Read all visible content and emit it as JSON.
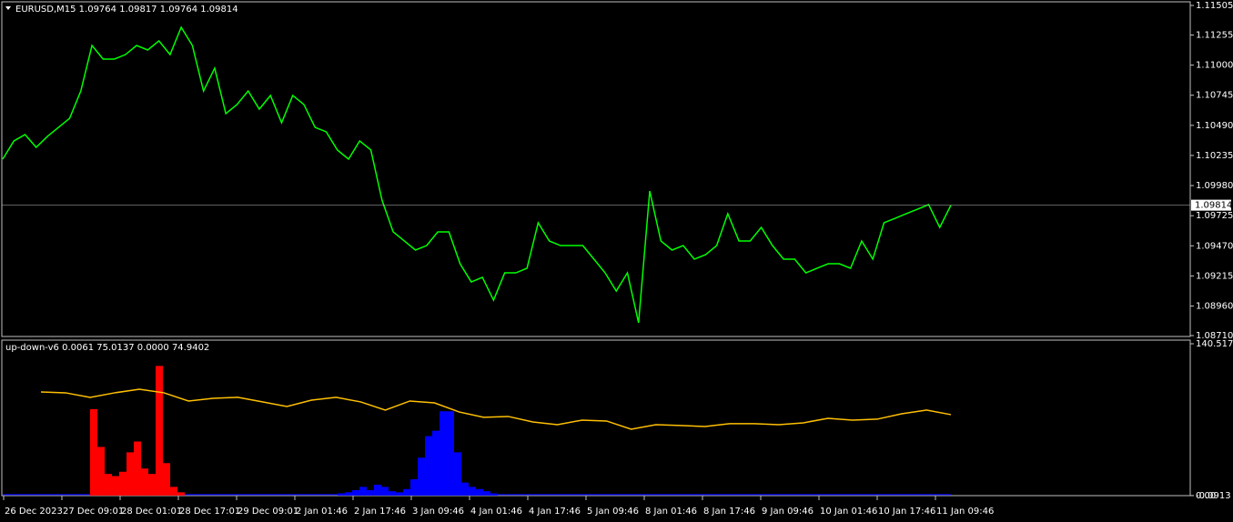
{
  "chart_data": [
    {
      "type": "line",
      "title": "EURUSD,M15  1.09764 1.09817 1.09764 1.09814",
      "color": "#00ff00",
      "values": [
        1.10204,
        1.10358,
        1.10412,
        1.10304,
        1.10396,
        1.10473,
        1.1055,
        1.10781,
        1.11166,
        1.11051,
        1.11051,
        1.11089,
        1.11166,
        1.11128,
        1.11205,
        1.11089,
        1.1132,
        1.11166,
        1.10781,
        1.10974,
        1.10589,
        1.10666,
        1.10781,
        1.10627,
        1.10743,
        1.10512,
        1.10743,
        1.10666,
        1.10473,
        1.10435,
        1.10281,
        1.10204,
        1.10358,
        1.10281,
        1.09857,
        1.09588,
        1.09511,
        1.09434,
        1.09472,
        1.09588,
        1.09588,
        1.09318,
        1.09164,
        1.09203,
        1.0901,
        1.09241,
        1.09241,
        1.0928,
        1.09665,
        1.09511,
        1.09472,
        1.09472,
        1.09472,
        1.09357,
        1.09241,
        1.09087,
        1.09241,
        1.08818,
        1.09934,
        1.09511,
        1.09434,
        1.09472,
        1.09357,
        1.09395,
        1.09472,
        1.09742,
        1.09511,
        1.09511,
        1.09626,
        1.09472,
        1.09357,
        1.09357,
        1.09241,
        1.0928,
        1.09318,
        1.09318,
        1.0928,
        1.09511,
        1.09357,
        1.09665,
        1.09703,
        1.09742,
        1.0978,
        1.09819,
        1.09626,
        1.09814
      ],
      "ylim": [
        1.0871,
        1.11505
      ],
      "yticks": [
        1.11505,
        1.11255,
        {
          "value": 1.11,
          "label": "1.11000"
        },
        1.10745,
        {
          "value": 1.1049,
          "label": "1.10490"
        },
        1.10235,
        {
          "value": 1.0998,
          "label": "1.09980"
        },
        1.09725,
        {
          "value": 1.0947,
          "label": "1.09470"
        },
        1.09215,
        {
          "value": 1.0896,
          "label": "1.08960"
        },
        {
          "value": 1.0871,
          "label": "1.08710"
        }
      ]
    },
    {
      "type": "bar",
      "title": "up-down-v6 0.0061 75.0137 0.0000 74.9402",
      "series": [
        {
          "color": "#ff0000",
          "values": [
            0,
            0,
            0,
            0,
            0,
            0,
            0,
            0,
            0,
            0,
            0,
            0,
            80,
            45,
            20,
            18,
            22,
            40,
            50,
            25,
            20,
            120,
            30,
            8,
            3,
            0,
            0,
            0,
            0,
            0,
            0,
            0,
            0,
            0,
            0,
            0,
            0,
            0,
            0,
            0,
            0,
            0,
            0,
            0,
            0,
            0,
            0,
            0,
            0,
            0,
            0,
            0,
            0,
            0,
            0,
            0,
            0,
            0,
            0,
            0,
            0,
            0,
            0,
            0,
            0,
            0,
            0,
            0,
            0,
            0,
            0,
            0,
            0,
            0,
            0,
            0,
            0,
            0,
            0,
            0,
            0,
            0,
            0,
            0,
            0,
            0,
            0,
            0,
            0,
            0,
            0,
            0,
            0,
            0,
            0,
            0,
            0,
            0,
            0,
            0,
            0,
            0,
            0,
            0,
            0,
            0,
            0,
            0,
            0,
            0,
            0,
            0,
            0,
            0,
            0,
            0,
            0,
            0,
            0,
            0,
            0,
            0,
            0,
            0,
            0,
            0,
            0,
            0,
            0,
            0
          ]
        },
        {
          "color": "#0000ff",
          "values": [
            0,
            0,
            0,
            0,
            0,
            0,
            0,
            0,
            0,
            0,
            0,
            0,
            0,
            0,
            0,
            0,
            0,
            0,
            0,
            0,
            0,
            0,
            0,
            0,
            0,
            0,
            0,
            0,
            0,
            0,
            0,
            0,
            0,
            0,
            0,
            0,
            0,
            0,
            0,
            0,
            0,
            0,
            0,
            0,
            0,
            0,
            2,
            3,
            5,
            8,
            5,
            10,
            8,
            4,
            3,
            6,
            15,
            35,
            55,
            60,
            78,
            78,
            40,
            12,
            8,
            6,
            4,
            2,
            0,
            0,
            0,
            0,
            0,
            0,
            0,
            0,
            0,
            0,
            0,
            0,
            0,
            0,
            0,
            0,
            0,
            0,
            0,
            0,
            0,
            0,
            0,
            0,
            0,
            0,
            0,
            0,
            0,
            0,
            0,
            0,
            0,
            0,
            0,
            0,
            0,
            0,
            0,
            0,
            0,
            0,
            0,
            0,
            0,
            0,
            0,
            0,
            0,
            0,
            0,
            0,
            0,
            0,
            0,
            0,
            0,
            0,
            0,
            0,
            0,
            0
          ]
        },
        {
          "type": "line",
          "color": "#ffc000",
          "values": [
            95.9,
            95.1,
            90.9,
            95.1,
            98.4,
            95.1,
            87.5,
            90.0,
            90.9,
            86.7,
            82.4,
            88.3,
            90.9,
            86.7,
            79.1,
            87.5,
            85.8,
            77.4,
            72.4,
            73.2,
            68.1,
            65.6,
            69.8,
            69.0,
            61.4,
            65.6,
            64.8,
            63.9,
            66.5,
            66.5,
            65.6,
            67.3,
            71.5,
            69.8,
            70.7,
            75.7,
            79.1,
            74.9
          ]
        }
      ],
      "ylim": [
        -0.0913,
        140.5172
      ],
      "yticks": [
        140.5172,
        {
          "value": 0,
          "label": "0.00"
        },
        -0.0913
      ],
      "x_labels": [
        "26 Dec 2023",
        "27 Dec 09:01",
        "28 Dec 01:01",
        "28 Dec 17:01",
        "29 Dec 09:01",
        "2 Jan 01:46",
        "2 Jan 17:46",
        "3 Jan 09:46",
        "4 Jan 01:46",
        "4 Jan 17:46",
        "5 Jan 09:46",
        "8 Jan 01:46",
        "8 Jan 17:46",
        "9 Jan 09:46",
        "10 Jan 01:46",
        "10 Jan 17:46",
        "11 Jan 09:46"
      ]
    }
  ]
}
